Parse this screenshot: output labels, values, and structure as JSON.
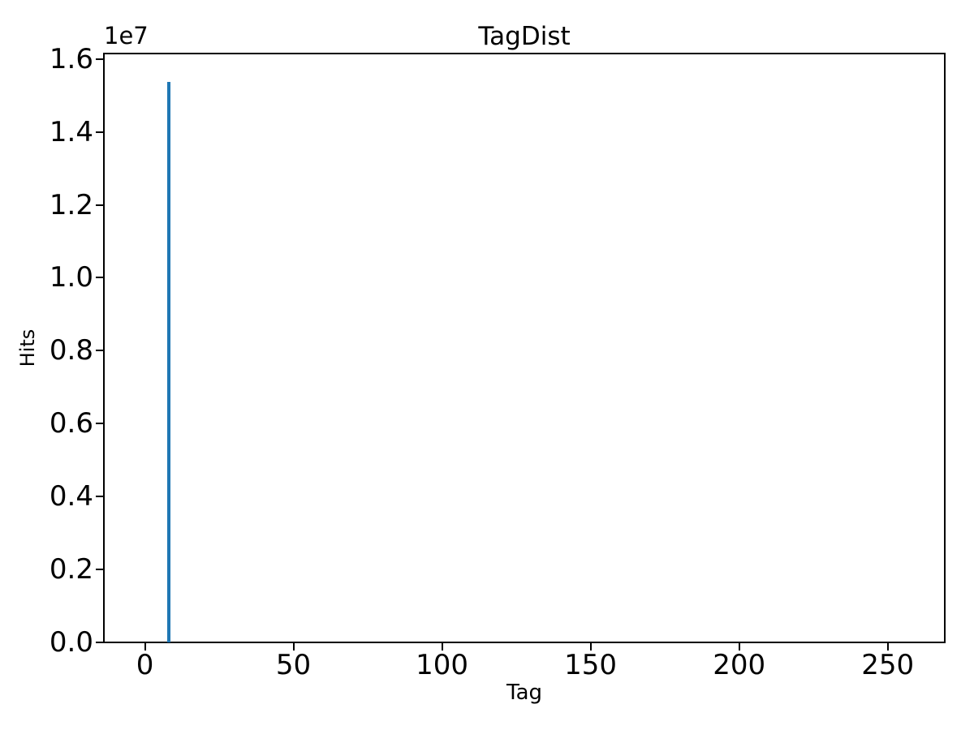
{
  "figure": {
    "background": "#ffffff",
    "axis_color": "#000000",
    "text_color": "#000000"
  },
  "chart_data": {
    "type": "bar",
    "title": "TagDist",
    "xlabel": "Tag",
    "ylabel": "Hits",
    "offset_text": "1e7",
    "series": [
      {
        "name": "Hits",
        "x": [
          8
        ],
        "values": [
          15380000
        ]
      }
    ],
    "bar_color": "#1f77b4",
    "bar_width_units": 1,
    "xlim": [
      -13.8,
      269.2
    ],
    "ylim": [
      0,
      16150000
    ],
    "x_ticks": [
      0,
      50,
      100,
      150,
      200,
      250
    ],
    "y_ticks": [
      0.0,
      0.2,
      0.4,
      0.6,
      0.8,
      1.0,
      1.2,
      1.4,
      1.6
    ],
    "y_tick_scale": 10000000,
    "y_tick_decimals": 1,
    "grid": false,
    "legend": null
  }
}
